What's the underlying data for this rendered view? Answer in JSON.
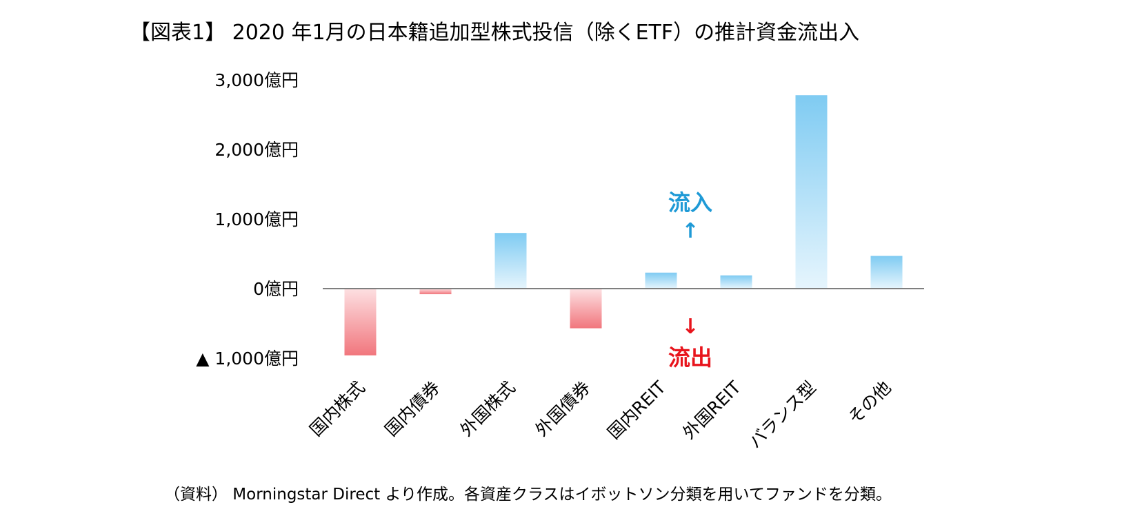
{
  "title": "【図表1】 2020 年1月の日本籍追加型株式投信（除くETF）の推計資金流出入",
  "note": "（資料） Morningstar Direct より作成。各資産クラスはイボットソン分類を用いてファンドを分類。",
  "colors": {
    "inflow_top": "#7fcbf2",
    "inflow_bottom": "#e6f5fd",
    "outflow_top": "#fde0e2",
    "outflow_bottom": "#f1767d",
    "inflow_label": "#1f9ad6",
    "outflow_label": "#e8141c",
    "axis": "#7f7f7f"
  },
  "annotations": {
    "inflow_label": "流入",
    "inflow_arrow": "↑",
    "outflow_label": "流出",
    "outflow_arrow": "↓"
  },
  "chart_data": {
    "type": "bar",
    "title": "【図表1】 2020 年1月の日本籍追加型株式投信（除くETF）の推計資金流出入",
    "categories": [
      "国内株式",
      "国内債券",
      "外国株式",
      "外国債券",
      "国内REIT",
      "外国REIT",
      "バランス型",
      "その他"
    ],
    "values": [
      -960,
      -80,
      800,
      -570,
      230,
      190,
      2780,
      470
    ],
    "ylim": [
      -1000,
      3000
    ],
    "yticks": [
      -1000,
      0,
      1000,
      2000,
      3000
    ],
    "ytick_labels": [
      "▲ 1,000億円",
      "0億円",
      "1,000億円",
      "2,000億円",
      "3,000億円"
    ],
    "grid": false,
    "legend": "none"
  }
}
